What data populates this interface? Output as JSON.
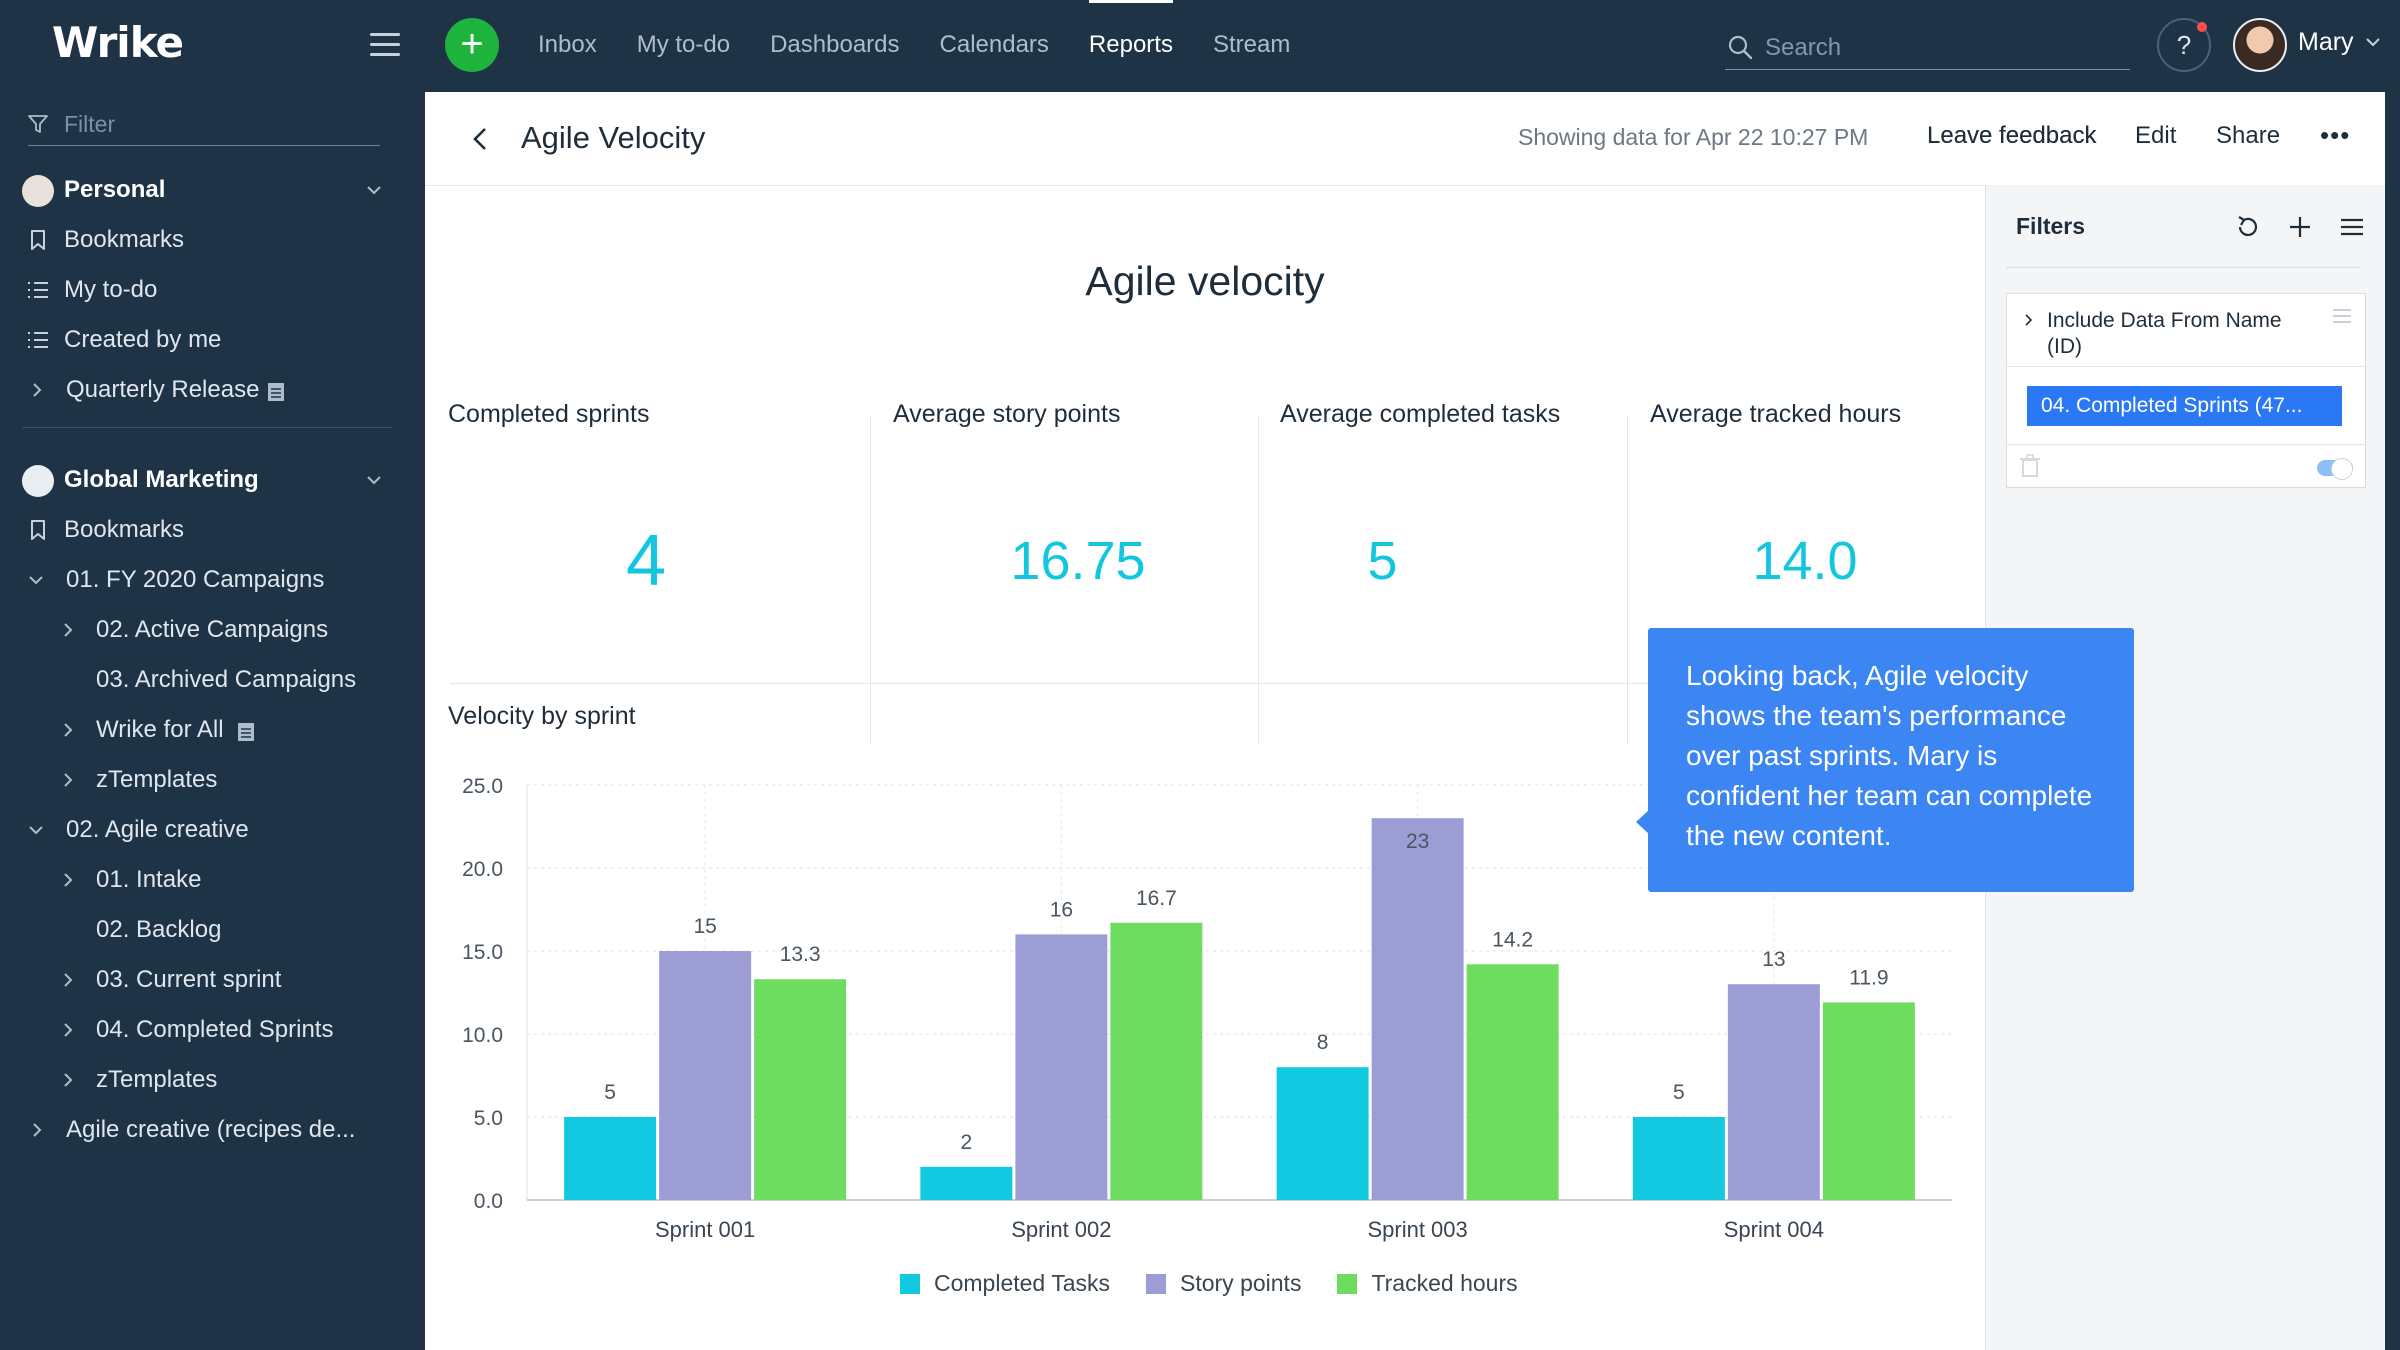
{
  "app": {
    "logo": "Wrike"
  },
  "topnav": {
    "items": [
      "Inbox",
      "My to-do",
      "Dashboards",
      "Calendars",
      "Reports",
      "Stream"
    ],
    "active": "Reports",
    "search_placeholder": "Search",
    "help_label": "?",
    "user_name": "Mary"
  },
  "sidebar": {
    "filter_placeholder": "Filter",
    "personal": {
      "title": "Personal",
      "items": [
        "Bookmarks",
        "My to-do",
        "Created by me",
        "Quarterly Release"
      ]
    },
    "workspace": {
      "title": "Global Marketing",
      "items": [
        "Bookmarks",
        "01. FY 2020 Campaigns",
        "02. Active Campaigns",
        "03. Archived Campaigns",
        "Wrike for All",
        "zTemplates",
        "02. Agile creative",
        "01. Intake",
        "02. Backlog",
        "03. Current sprint",
        "04. Completed Sprints",
        "zTemplates",
        "Agile creative (recipes de..."
      ]
    }
  },
  "header": {
    "title": "Agile Velocity",
    "showing": "Showing data for Apr 22 10:27 PM",
    "leave_feedback": "Leave feedback",
    "edit": "Edit",
    "share": "Share",
    "more": "•••"
  },
  "report": {
    "title": "Agile velocity",
    "kpis": [
      {
        "label": "Completed sprints",
        "value": "4"
      },
      {
        "label": "Average story points",
        "value": "16.75"
      },
      {
        "label": "Average completed tasks",
        "value": "5"
      },
      {
        "label": "Average tracked hours",
        "value": "14.0"
      }
    ],
    "chart_title": "Velocity by sprint"
  },
  "chart_data": {
    "type": "bar",
    "title": "Velocity by sprint",
    "categories": [
      "Sprint 001",
      "Sprint 002",
      "Sprint 003",
      "Sprint 004"
    ],
    "series": [
      {
        "name": "Completed Tasks",
        "color": "#13c9e2",
        "values": [
          5,
          2,
          8,
          5
        ],
        "labels": [
          "5",
          "2",
          "8",
          "5"
        ]
      },
      {
        "name": "Story points",
        "color": "#9d9dd6",
        "values": [
          15,
          16,
          23,
          13
        ],
        "labels": [
          "15",
          "16",
          "23",
          "13"
        ]
      },
      {
        "name": "Tracked hours",
        "color": "#6edd5f",
        "values": [
          13.3,
          16.7,
          14.2,
          11.9
        ],
        "labels": [
          "13.3",
          "16.7",
          "14.2",
          "11.9"
        ]
      }
    ],
    "ylim": [
      0,
      25
    ],
    "yticks": [
      "0.0",
      "5.0",
      "10.0",
      "15.0",
      "20.0",
      "25.0"
    ],
    "grid": true,
    "legend_position": "bottom"
  },
  "filters": {
    "title": "Filters",
    "card_label": "Include Data From Name (ID)",
    "chip": "04. Completed Sprints (47..."
  },
  "tooltip": {
    "text": "Looking back, Agile velocity shows the team's performance over past sprints. Mary is confident her team can complete the new content."
  }
}
